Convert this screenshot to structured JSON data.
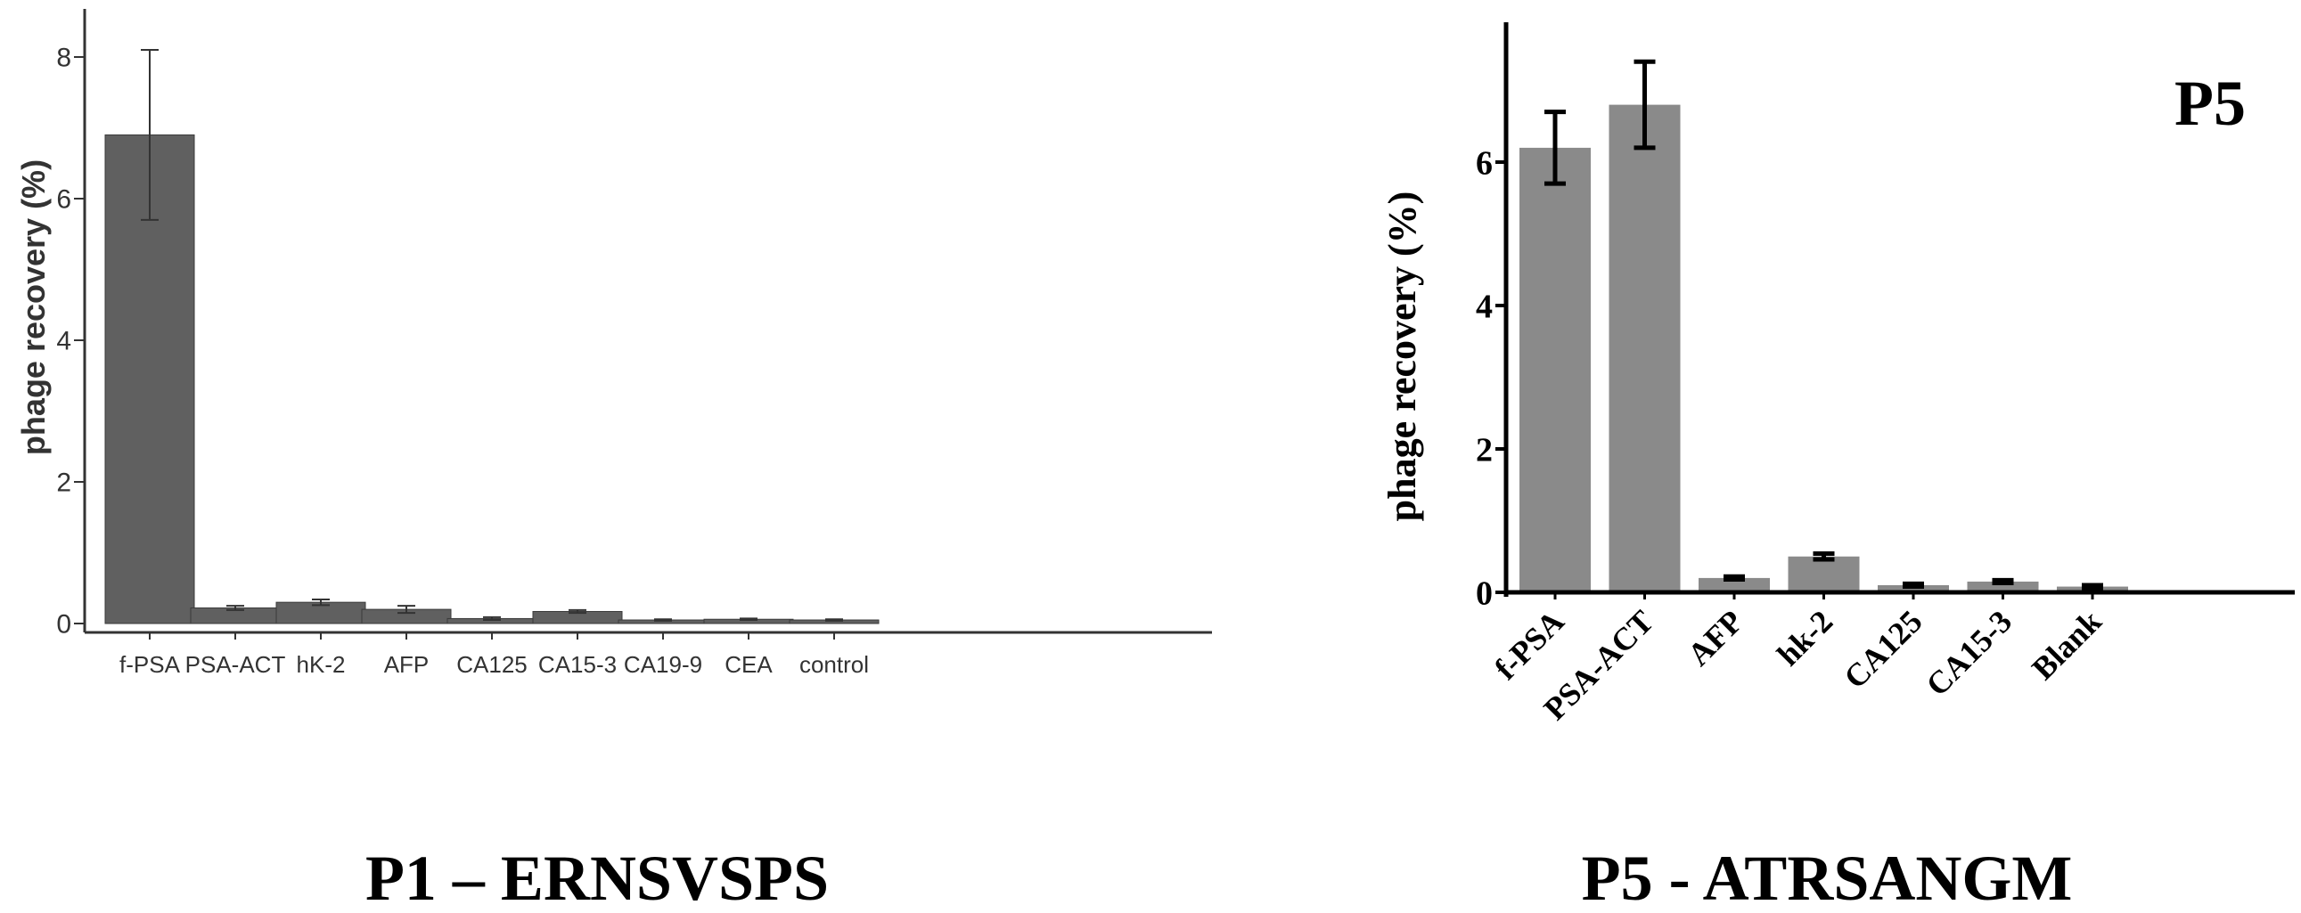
{
  "chart_data": [
    {
      "type": "bar",
      "title": "",
      "xlabel": "",
      "ylabel": "phage recovery (%)",
      "ylim": [
        -0.2,
        8.6
      ],
      "yticks": [
        0,
        2,
        4,
        6,
        8
      ],
      "grid": false,
      "colors": {
        "bar": "#606060",
        "error": "#333333",
        "axis": "#333333"
      },
      "categories": [
        "f-PSA",
        "PSA-ACT",
        "hK-2",
        "AFP",
        "CA125",
        "CA15-3",
        "CA19-9",
        "CEA",
        "control"
      ],
      "series": [
        {
          "values": [
            6.9,
            0.22,
            0.3,
            0.2,
            0.07,
            0.17,
            0.05,
            0.06,
            0.05
          ],
          "errors": [
            1.2,
            0.03,
            0.04,
            0.05,
            0.02,
            0.02,
            0.01,
            0.01,
            0.01
          ]
        }
      ],
      "caption": "P1 – ERNSVSPS"
    },
    {
      "type": "bar",
      "title": "P5",
      "xlabel": "",
      "ylabel": "phage recovery (%)",
      "ylim": [
        -0.2,
        8.1
      ],
      "yticks": [
        0,
        2,
        4,
        6
      ],
      "grid": false,
      "colors": {
        "bar": "#8a8a8a",
        "error": "#000000",
        "axis": "#000000"
      },
      "categories": [
        "f-PSA",
        "PSA-ACT",
        "AFP",
        "hk-2",
        "CA125",
        "CA15-3",
        "Blank"
      ],
      "series": [
        {
          "values": [
            6.2,
            6.8,
            0.2,
            0.5,
            0.1,
            0.15,
            0.08
          ],
          "errors": [
            0.5,
            0.6,
            0.02,
            0.04,
            0.02,
            0.02,
            0.02
          ]
        }
      ],
      "caption": "P5 - ATRSANGM"
    }
  ]
}
